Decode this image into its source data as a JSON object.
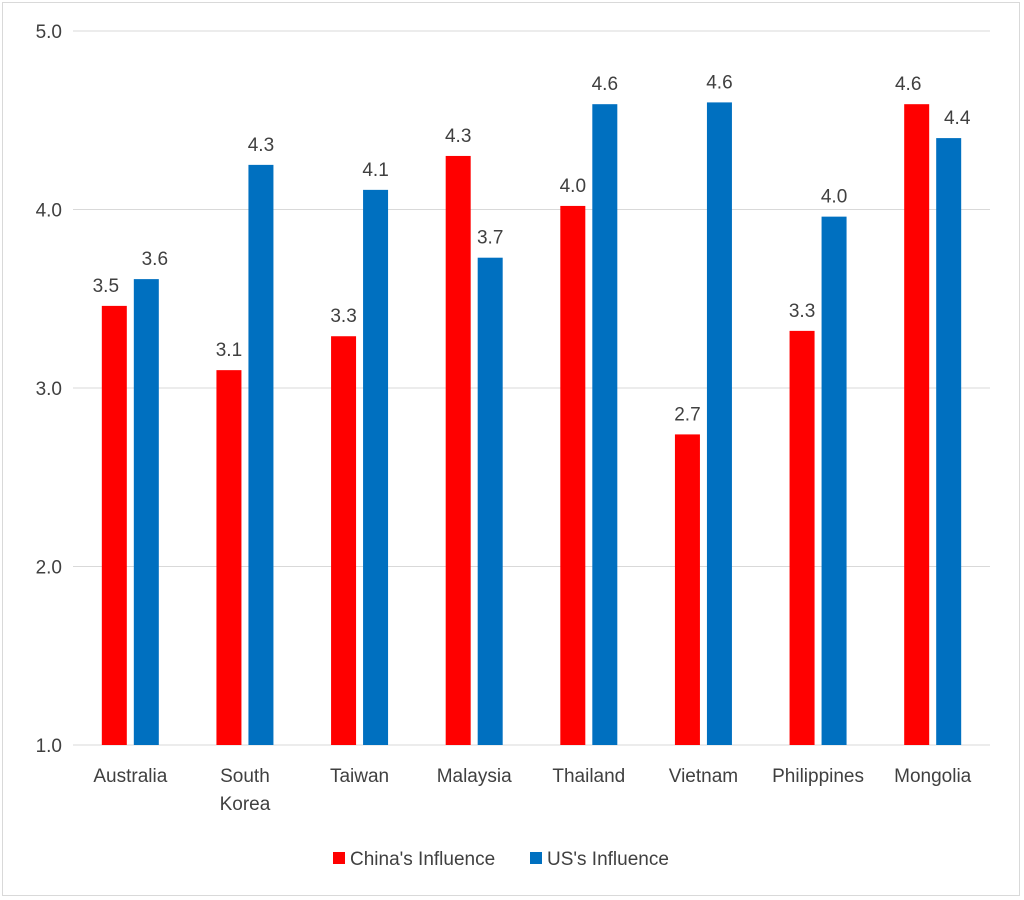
{
  "chart_data": {
    "type": "bar",
    "categories": [
      [
        "Australia"
      ],
      [
        "South",
        "Korea"
      ],
      [
        "Taiwan"
      ],
      [
        "Malaysia"
      ],
      [
        "Thailand"
      ],
      [
        "Vietnam"
      ],
      [
        "Philippines"
      ],
      [
        "Mongolia"
      ]
    ],
    "series": [
      {
        "name": "China's Influence",
        "color": "#ff0000",
        "values": [
          3.46,
          3.1,
          3.29,
          4.3,
          4.02,
          2.74,
          3.32,
          4.59
        ],
        "labels": [
          "3.5",
          "3.1",
          "3.3",
          "4.3",
          "4.0",
          "2.7",
          "3.3",
          "4.6"
        ]
      },
      {
        "name": "US's Influence",
        "color": "#0070c0",
        "values": [
          3.61,
          4.25,
          4.11,
          3.73,
          4.59,
          4.6,
          3.96,
          4.4
        ],
        "labels": [
          "3.6",
          "4.3",
          "4.1",
          "3.7",
          "4.6",
          "4.6",
          "4.0",
          "4.4"
        ]
      }
    ],
    "ylim": [
      1.0,
      5.0
    ],
    "yticks": [
      1.0,
      2.0,
      3.0,
      4.0,
      5.0
    ],
    "ytick_labels": [
      "1.0",
      "2.0",
      "3.0",
      "4.0",
      "5.0"
    ],
    "title": "",
    "xlabel": "",
    "ylabel": "",
    "grid": true,
    "legend_position": "bottom",
    "gridline_color": "#d9d9d9",
    "text_color": "#404040"
  }
}
